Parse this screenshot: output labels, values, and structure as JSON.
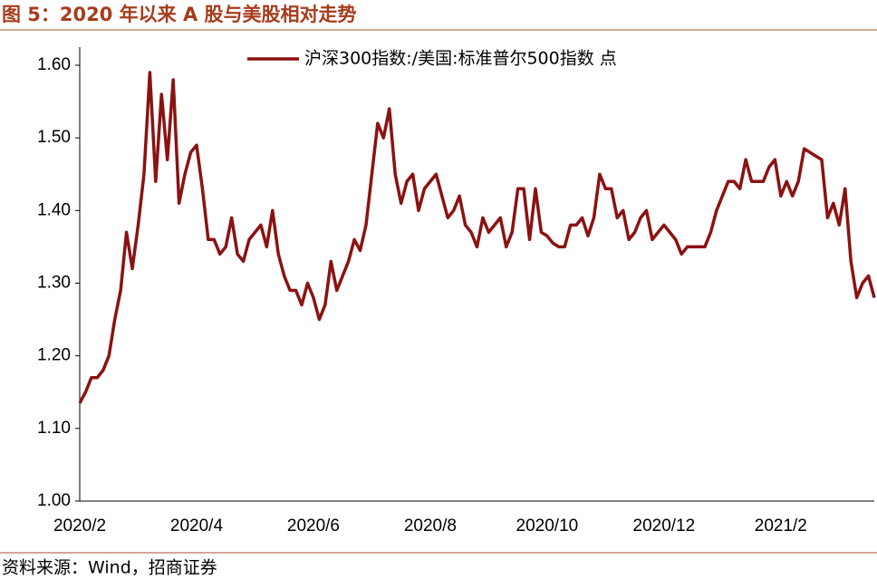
{
  "chart_data": {
    "type": "line",
    "title": "图 5：2020 年以来 A 股与美股相对走势",
    "source": "资料来源：Wind，招商证券",
    "categories": [
      "2020/2",
      null,
      null,
      null,
      null,
      null,
      null,
      null,
      null,
      null,
      null,
      null,
      null,
      null,
      null,
      null,
      null,
      null,
      null,
      null,
      "2020/4",
      null,
      null,
      null,
      null,
      null,
      null,
      null,
      null,
      null,
      null,
      null,
      null,
      null,
      null,
      null,
      null,
      null,
      null,
      null,
      "2020/6",
      null,
      null,
      null,
      null,
      null,
      null,
      null,
      null,
      null,
      null,
      null,
      null,
      null,
      null,
      null,
      null,
      null,
      null,
      null,
      "2020/8",
      null,
      null,
      null,
      null,
      null,
      null,
      null,
      null,
      null,
      null,
      null,
      null,
      null,
      null,
      null,
      null,
      null,
      null,
      null,
      "2020/10",
      null,
      null,
      null,
      null,
      null,
      null,
      null,
      null,
      null,
      null,
      null,
      null,
      null,
      null,
      null,
      null,
      null,
      null,
      null,
      "2020/12",
      null,
      null,
      null,
      null,
      null,
      null,
      null,
      null,
      null,
      null,
      null,
      null,
      null,
      null,
      null,
      null,
      null,
      null,
      null,
      "2021/2",
      null,
      null,
      null,
      null,
      null,
      null,
      null,
      null,
      null,
      null,
      null,
      null,
      null,
      null,
      null,
      null
    ],
    "series": [
      {
        "name": "沪深300指数:/美国:标准普尔500指数 点",
        "color": "#8b1212",
        "values": [
          1.135,
          1.15,
          1.17,
          1.17,
          1.18,
          1.2,
          1.25,
          1.29,
          1.37,
          1.32,
          1.38,
          1.45,
          1.59,
          1.44,
          1.56,
          1.47,
          1.58,
          1.41,
          1.45,
          1.48,
          1.49,
          1.43,
          1.36,
          1.36,
          1.34,
          1.35,
          1.39,
          1.34,
          1.33,
          1.36,
          1.37,
          1.38,
          1.35,
          1.4,
          1.34,
          1.31,
          1.29,
          1.29,
          1.27,
          1.3,
          1.28,
          1.25,
          1.27,
          1.33,
          1.29,
          1.31,
          1.33,
          1.36,
          1.345,
          1.38,
          1.45,
          1.52,
          1.5,
          1.54,
          1.45,
          1.41,
          1.44,
          1.45,
          1.4,
          1.43,
          1.44,
          1.45,
          1.42,
          1.39,
          1.4,
          1.42,
          1.38,
          1.37,
          1.35,
          1.39,
          1.37,
          1.38,
          1.39,
          1.35,
          1.37,
          1.43,
          1.43,
          1.36,
          1.43,
          1.37,
          1.365,
          1.355,
          1.35,
          1.35,
          1.38,
          1.38,
          1.39,
          1.365,
          1.39,
          1.45,
          1.43,
          1.43,
          1.39,
          1.4,
          1.36,
          1.37,
          1.39,
          1.4,
          1.36,
          1.37,
          1.38,
          1.37,
          1.36,
          1.34,
          1.35,
          1.35,
          1.35,
          1.35,
          1.37,
          1.4,
          1.42,
          1.44,
          1.44,
          1.43,
          1.47,
          1.44,
          1.44,
          1.44,
          1.46,
          1.47,
          1.42,
          1.44,
          1.42,
          1.44,
          1.485,
          1.48,
          1.475,
          1.47,
          1.39,
          1.41,
          1.38,
          1.43,
          1.33,
          1.28,
          1.3,
          1.31,
          1.28
        ]
      }
    ],
    "ylim": [
      1,
      1.6
    ],
    "yticks": [
      {
        "value": 1,
        "label": "1.00"
      },
      {
        "value": 1.1,
        "label": "1.10"
      },
      {
        "value": 1.2,
        "label": "1.20"
      },
      {
        "value": 1.3,
        "label": "1.30"
      },
      {
        "value": 1.4,
        "label": "1.40"
      },
      {
        "value": 1.5,
        "label": "1.50"
      },
      {
        "value": 1.6,
        "label": "1.60"
      }
    ],
    "legend": "top"
  }
}
